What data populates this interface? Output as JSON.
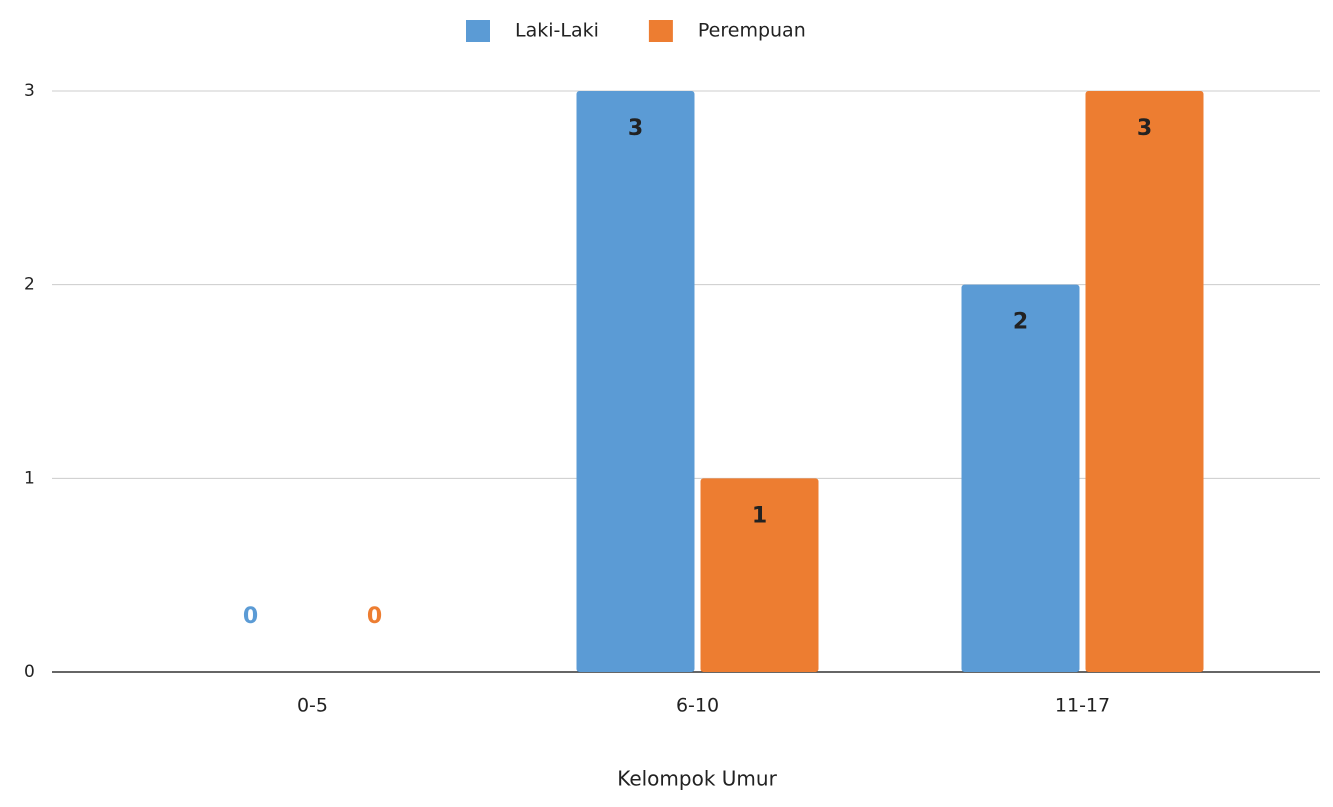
{
  "chart_data": {
    "type": "bar",
    "categories": [
      "0-5",
      "6-10",
      "11-17"
    ],
    "series": [
      {
        "name": "Laki-Laki",
        "color": "#5b9bd5",
        "values": [
          0,
          3,
          2
        ]
      },
      {
        "name": "Perempuan",
        "color": "#ed7d31",
        "values": [
          0,
          1,
          3
        ]
      }
    ],
    "x_label": "Kelompok Umur",
    "ylim": [
      0,
      3
    ],
    "yticks": [
      0,
      1,
      2,
      3
    ],
    "grid": true,
    "legend": "top"
  }
}
